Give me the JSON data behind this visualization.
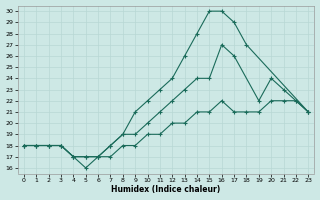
{
  "xlabel": "Humidex (Indice chaleur)",
  "xlim": [
    -0.5,
    23.5
  ],
  "ylim": [
    15.5,
    30.5
  ],
  "xticks": [
    0,
    1,
    2,
    3,
    4,
    5,
    6,
    7,
    8,
    9,
    10,
    11,
    12,
    13,
    14,
    15,
    16,
    17,
    18,
    19,
    20,
    21,
    22,
    23
  ],
  "yticks": [
    16,
    17,
    18,
    19,
    20,
    21,
    22,
    23,
    24,
    25,
    26,
    27,
    28,
    29,
    30
  ],
  "line_color": "#1a6b5a",
  "bg_color": "#cde8e5",
  "grid_color": "#b8d8d4",
  "line1_x": [
    0,
    1,
    2,
    3,
    4,
    5,
    6,
    7,
    8,
    9,
    10,
    11,
    12,
    13,
    14,
    15,
    16,
    17,
    18,
    23
  ],
  "line1_y": [
    18,
    18,
    18,
    18,
    17,
    16,
    17,
    18,
    19,
    21,
    22,
    23,
    24,
    26,
    28,
    30,
    30,
    29,
    27,
    21
  ],
  "line2_x": [
    0,
    1,
    2,
    3,
    4,
    5,
    6,
    7,
    8,
    9,
    10,
    11,
    12,
    13,
    14,
    15,
    16,
    17,
    19,
    20,
    21,
    22,
    23
  ],
  "line2_y": [
    18,
    18,
    18,
    18,
    17,
    17,
    17,
    18,
    19,
    19,
    20,
    21,
    22,
    23,
    24,
    24,
    27,
    26,
    22,
    24,
    23,
    22,
    21
  ],
  "line3_x": [
    0,
    1,
    2,
    3,
    4,
    5,
    6,
    7,
    8,
    9,
    10,
    11,
    12,
    13,
    14,
    15,
    16,
    17,
    18,
    19,
    20,
    21,
    22,
    23
  ],
  "line3_y": [
    18,
    18,
    18,
    18,
    17,
    17,
    17,
    17,
    18,
    18,
    19,
    19,
    20,
    20,
    21,
    21,
    22,
    21,
    21,
    21,
    22,
    22,
    22,
    21
  ]
}
